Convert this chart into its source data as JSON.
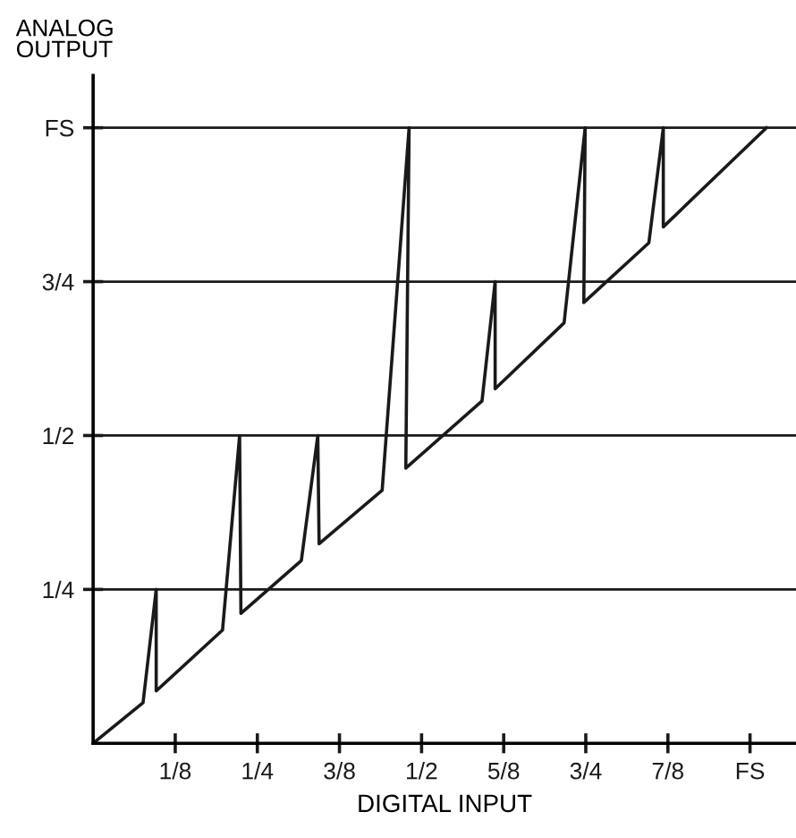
{
  "chart_data": {
    "type": "line",
    "xlabel": "DIGITAL INPUT",
    "ylabel": "ANALOG\nOUTPUT",
    "x": [
      0,
      0.076,
      0.096,
      0.096,
      0.197,
      0.223,
      0.225,
      0.317,
      0.342,
      0.344,
      0.44,
      0.481,
      0.476,
      0.592,
      0.612,
      0.612,
      0.717,
      0.749,
      0.747,
      0.846,
      0.868,
      0.868,
      1.025
    ],
    "series": [
      {
        "color": "#1a1a1a",
        "values": [
          0,
          0.066,
          0.25,
          0.085,
          0.184,
          0.5,
          0.211,
          0.297,
          0.5,
          0.324,
          0.411,
          1.0,
          0.447,
          0.556,
          0.75,
          0.576,
          0.683,
          1.0,
          0.716,
          0.813,
          1.0,
          0.839,
          1.0
        ]
      }
    ],
    "xlim": [
      0,
      1.07
    ],
    "ylim": [
      0,
      1.085
    ],
    "xticks": [
      {
        "value": 0.125,
        "label": "1/8"
      },
      {
        "value": 0.25,
        "label": "1/4"
      },
      {
        "value": 0.375,
        "label": "3/8"
      },
      {
        "value": 0.5,
        "label": "1/2"
      },
      {
        "value": 0.625,
        "label": "5/8"
      },
      {
        "value": 0.75,
        "label": "3/4"
      },
      {
        "value": 0.875,
        "label": "7/8"
      },
      {
        "value": 1.0,
        "label": "FS"
      }
    ],
    "yticks": [
      {
        "value": 0.25,
        "label": "1/4"
      },
      {
        "value": 0.5,
        "label": "1/2"
      },
      {
        "value": 0.75,
        "label": "3/4"
      },
      {
        "value": 1.0,
        "label": "FS"
      }
    ],
    "grid": "y",
    "marker": "none",
    "line_style": "solid"
  }
}
